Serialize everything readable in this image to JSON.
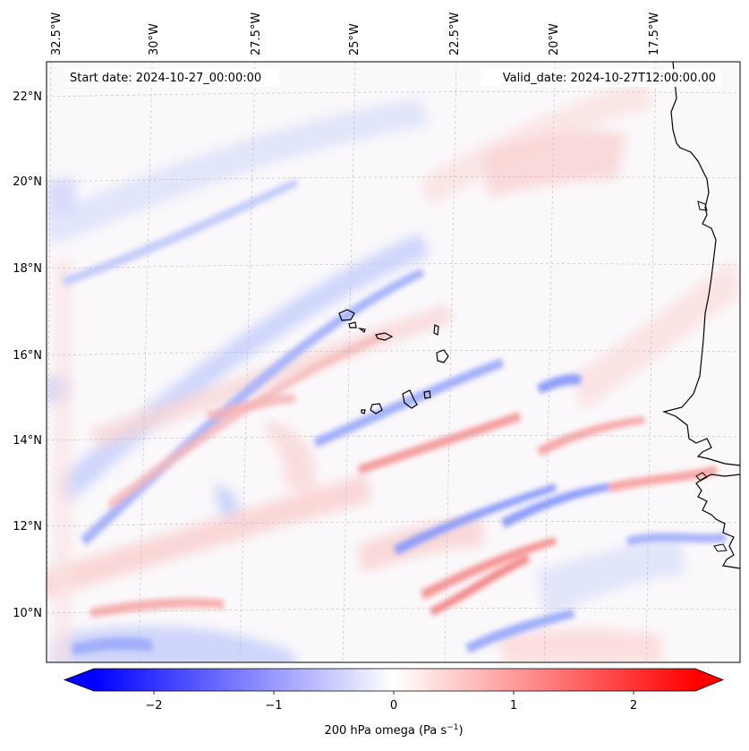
{
  "map": {
    "start_date_label": "Start date: 2024-10-27_00:00:00",
    "valid_date_label": "Valid_date: 2024-10-27T12:00:00.00",
    "lon_labels": [
      "32.5°W",
      "30°W",
      "27.5°W",
      "25°W",
      "22.5°W",
      "20°W",
      "17.5°W"
    ],
    "lat_labels": [
      "22°N",
      "20°N",
      "18°N",
      "16°N",
      "14°N",
      "12°N",
      "10°N"
    ]
  },
  "colorbar": {
    "ticks": [
      "−2",
      "−1",
      "0",
      "1",
      "2"
    ],
    "label": "200 hPa omega (Pa s",
    "label_sup": "−1",
    "label_end": ")",
    "range": [
      -2.6,
      2.6
    ],
    "cmap": "bwr"
  },
  "colors": {
    "negative": "#0000ff",
    "zero": "#ffffff",
    "positive": "#ff0000",
    "coast": "#000000"
  }
}
